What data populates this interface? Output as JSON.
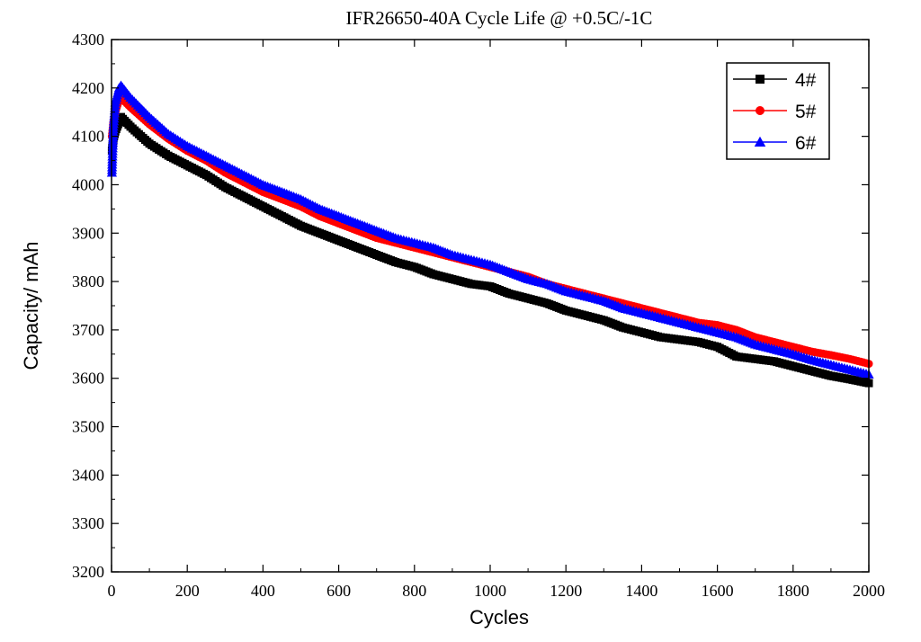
{
  "chart_data": {
    "type": "scatter",
    "title": "IFR26650-40A Cycle Life @ +0.5C/-1C",
    "xlabel": "Cycles",
    "ylabel": "Capacity/ mAh",
    "xlim": [
      0,
      2000
    ],
    "ylim": [
      3200,
      4300
    ],
    "xticks": [
      "0",
      "200",
      "400",
      "600",
      "800",
      "1000",
      "1200",
      "1400",
      "1600",
      "1800",
      "2000"
    ],
    "yticks": [
      "3200",
      "3300",
      "3400",
      "3500",
      "3600",
      "3700",
      "3800",
      "3900",
      "4000",
      "4100",
      "4200",
      "4300"
    ],
    "legend_position": "top-right",
    "grid": false,
    "series": [
      {
        "name": "4#",
        "color": "#000000",
        "marker": "square",
        "x": [
          1,
          5,
          10,
          20,
          25,
          50,
          100,
          150,
          200,
          250,
          300,
          350,
          400,
          450,
          500,
          550,
          600,
          650,
          700,
          750,
          800,
          850,
          900,
          950,
          1000,
          1050,
          1100,
          1150,
          1200,
          1250,
          1300,
          1350,
          1400,
          1450,
          1500,
          1550,
          1600,
          1650,
          1700,
          1750,
          1800,
          1850,
          1900,
          1950,
          2000
        ],
        "y": [
          4070,
          4095,
          4110,
          4130,
          4140,
          4120,
          4085,
          4060,
          4040,
          4020,
          3995,
          3975,
          3955,
          3935,
          3915,
          3900,
          3885,
          3870,
          3855,
          3840,
          3830,
          3815,
          3805,
          3795,
          3790,
          3775,
          3765,
          3755,
          3740,
          3730,
          3720,
          3705,
          3695,
          3685,
          3680,
          3675,
          3665,
          3645,
          3640,
          3635,
          3625,
          3615,
          3605,
          3598,
          3590
        ]
      },
      {
        "name": "5#",
        "color": "#ff0000",
        "marker": "circle",
        "x": [
          1,
          5,
          10,
          20,
          25,
          50,
          100,
          150,
          200,
          250,
          300,
          350,
          400,
          450,
          500,
          550,
          600,
          650,
          700,
          750,
          800,
          850,
          900,
          950,
          1000,
          1050,
          1100,
          1150,
          1200,
          1250,
          1300,
          1350,
          1400,
          1450,
          1500,
          1550,
          1600,
          1650,
          1700,
          1750,
          1800,
          1850,
          1900,
          1950,
          2000
        ],
        "y": [
          4100,
          4130,
          4150,
          4175,
          4180,
          4160,
          4125,
          4095,
          4070,
          4050,
          4025,
          4005,
          3985,
          3970,
          3955,
          3935,
          3920,
          3905,
          3890,
          3880,
          3870,
          3860,
          3850,
          3840,
          3830,
          3820,
          3810,
          3795,
          3785,
          3775,
          3765,
          3755,
          3745,
          3735,
          3725,
          3715,
          3710,
          3700,
          3685,
          3675,
          3665,
          3655,
          3648,
          3640,
          3630
        ]
      },
      {
        "name": "6#",
        "color": "#0000ff",
        "marker": "triangle",
        "x": [
          1,
          5,
          10,
          20,
          25,
          50,
          100,
          150,
          200,
          250,
          300,
          350,
          400,
          450,
          500,
          550,
          600,
          650,
          700,
          750,
          800,
          850,
          900,
          950,
          1000,
          1050,
          1100,
          1150,
          1200,
          1250,
          1300,
          1350,
          1400,
          1450,
          1500,
          1550,
          1600,
          1650,
          1700,
          1750,
          1800,
          1850,
          1900,
          1950,
          2000
        ],
        "y": [
          4025,
          4120,
          4170,
          4200,
          4205,
          4180,
          4140,
          4105,
          4080,
          4060,
          4040,
          4020,
          4000,
          3985,
          3970,
          3950,
          3935,
          3920,
          3905,
          3890,
          3880,
          3870,
          3855,
          3845,
          3835,
          3820,
          3805,
          3795,
          3780,
          3770,
          3760,
          3745,
          3735,
          3725,
          3715,
          3705,
          3695,
          3685,
          3670,
          3660,
          3650,
          3638,
          3628,
          3618,
          3608
        ]
      }
    ]
  }
}
